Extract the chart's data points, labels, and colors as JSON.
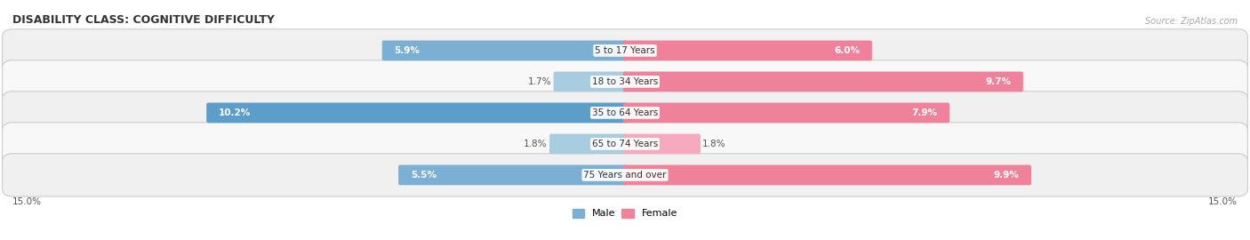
{
  "title": "DISABILITY CLASS: COGNITIVE DIFFICULTY",
  "source": "Source: ZipAtlas.com",
  "categories": [
    "5 to 17 Years",
    "18 to 34 Years",
    "35 to 64 Years",
    "65 to 74 Years",
    "75 Years and over"
  ],
  "male_values": [
    5.9,
    1.7,
    10.2,
    1.8,
    5.5
  ],
  "female_values": [
    6.0,
    9.7,
    7.9,
    1.8,
    9.9
  ],
  "max_val": 15.0,
  "male_colors": [
    "#7bafd4",
    "#a8cce0",
    "#5b9ec9",
    "#a8cce0",
    "#7bafd4"
  ],
  "female_colors": [
    "#f0819a",
    "#f0819a",
    "#f0819a",
    "#f5aabf",
    "#f0819a"
  ],
  "row_bg_colors": [
    "#f0f0f0",
    "#f8f8f8",
    "#f0f0f0",
    "#f8f8f8",
    "#f0f0f0"
  ],
  "axis_label_left": "15.0%",
  "axis_label_right": "15.0%",
  "legend_male": "Male",
  "legend_female": "Female",
  "legend_male_color": "#7bafd4",
  "legend_female_color": "#f0819a",
  "title_fontsize": 9,
  "label_fontsize": 7.5,
  "category_fontsize": 7.5
}
